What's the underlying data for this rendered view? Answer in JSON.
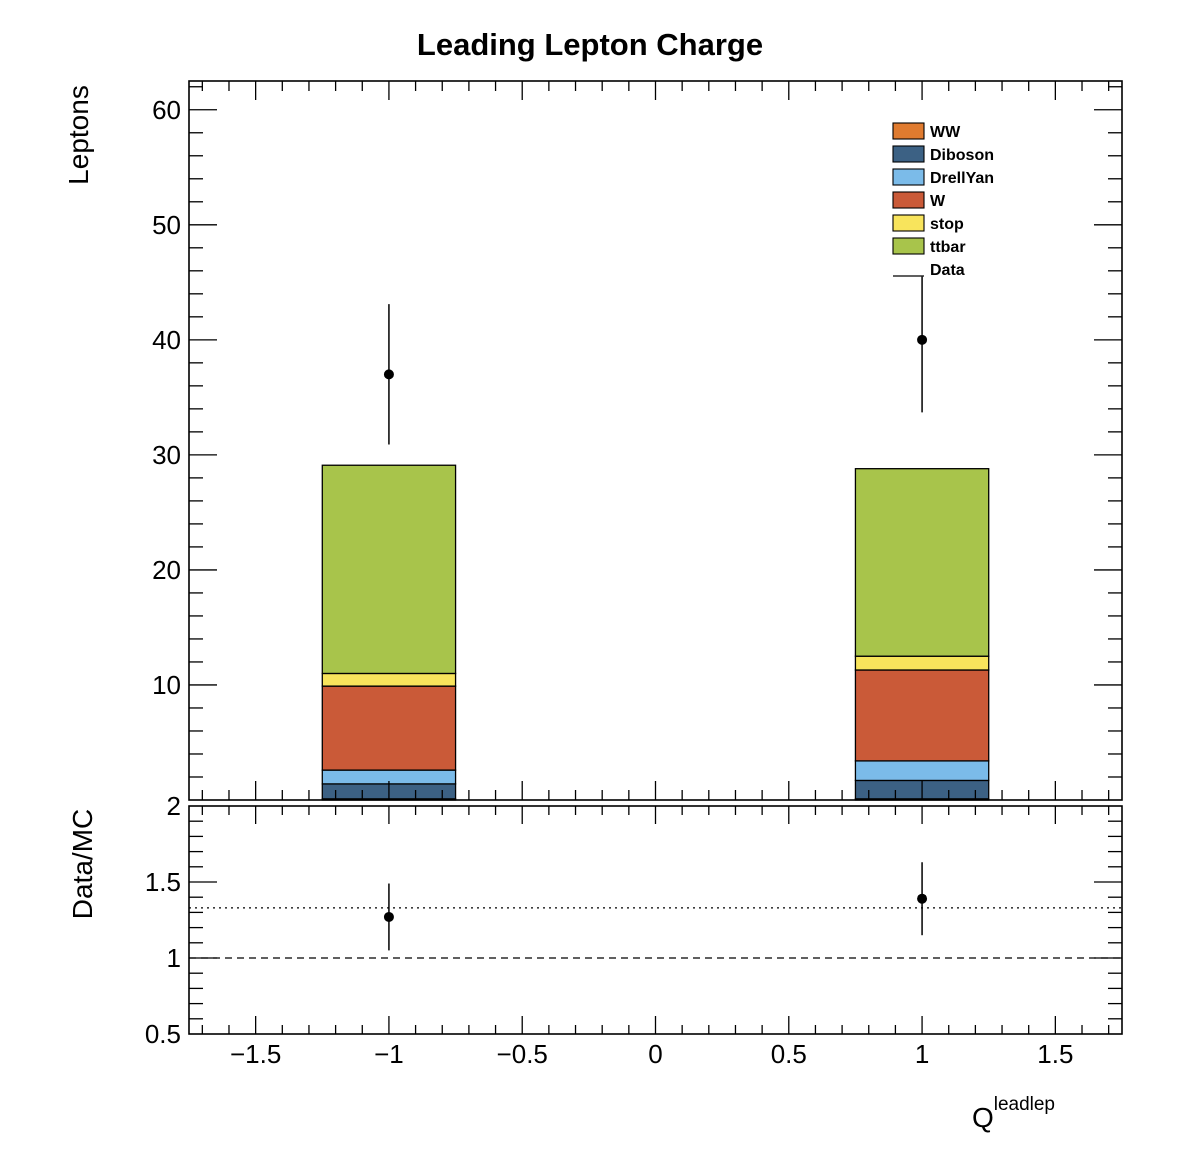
{
  "chart_data": {
    "type": "bar",
    "title": "Leading Lepton Charge",
    "colors": {
      "WW": "#e07b2f",
      "Diboson": "#3c6184",
      "DrellYan": "#7bbbe9",
      "W": "#ca5a38",
      "stop": "#f8e45c",
      "ttbar": "#a8c44b",
      "Data": "#000000"
    },
    "main": {
      "ylabel": "Leptons",
      "xlim": [
        -1.75,
        1.75
      ],
      "ylim": [
        0,
        62.5
      ],
      "yticks": [
        0,
        10,
        20,
        30,
        40,
        50,
        60
      ],
      "yticklabels": [
        "",
        "10",
        "20",
        "30",
        "40",
        "50",
        "60"
      ],
      "bins": [
        {
          "low": -1.25,
          "high": -0.75
        },
        {
          "low": 0.75,
          "high": 1.25
        }
      ],
      "stack_order_bottom_to_top": [
        "WW",
        "Diboson",
        "DrellYan",
        "W",
        "stop",
        "ttbar"
      ],
      "series": [
        {
          "name": "WW",
          "values": [
            0.1,
            0.1
          ]
        },
        {
          "name": "Diboson",
          "values": [
            1.3,
            1.6
          ]
        },
        {
          "name": "DrellYan",
          "values": [
            1.2,
            1.7
          ]
        },
        {
          "name": "W",
          "values": [
            7.3,
            7.9
          ]
        },
        {
          "name": "stop",
          "values": [
            1.1,
            1.2
          ]
        },
        {
          "name": "ttbar",
          "values": [
            18.1,
            16.3
          ]
        }
      ],
      "data": {
        "name": "Data",
        "x": [
          -1,
          1
        ],
        "y": [
          37,
          40
        ],
        "err_low": [
          6.1,
          6.3
        ],
        "err_high": [
          6.1,
          5.5
        ]
      },
      "legend_entries": [
        "WW",
        "Diboson",
        "DrellYan",
        "W",
        "stop",
        "ttbar",
        "Data"
      ],
      "legend_position": "top-right"
    },
    "ratio": {
      "ylabel": "Data/MC",
      "xlabel": "Q",
      "xlabel_superscript": "leadlep",
      "xlim": [
        -1.75,
        1.75
      ],
      "ylim": [
        0.5,
        2
      ],
      "yticks": [
        0.5,
        1,
        1.5,
        2
      ],
      "yticklabels": [
        "0.5",
        "1",
        "1.5",
        "2"
      ],
      "xticks": [
        -1.5,
        -1,
        -0.5,
        0,
        0.5,
        1,
        1.5
      ],
      "xticklabels": [
        "−1.5",
        "−1",
        "−0.5",
        "0",
        "0.5",
        "1",
        "1.5"
      ],
      "points": {
        "x": [
          -1,
          1
        ],
        "y": [
          1.27,
          1.39
        ],
        "err_low": [
          0.22,
          0.24
        ],
        "err_high": [
          0.22,
          0.24
        ]
      },
      "reference_line_dashed": 1,
      "overall_ratio_dotted": 1.33
    }
  }
}
